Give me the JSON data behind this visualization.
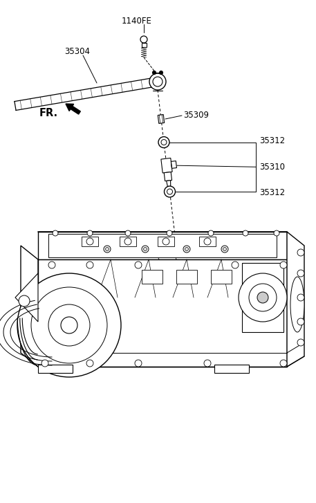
{
  "bg_color": "#ffffff",
  "lc": "#000000",
  "fig_width": 4.57,
  "fig_height": 7.27,
  "dpi": 100,
  "label_1140FE": "1140FE",
  "label_35304": "35304",
  "label_35309": "35309",
  "label_35312": "35312",
  "label_35310": "35310",
  "label_FR": "FR."
}
